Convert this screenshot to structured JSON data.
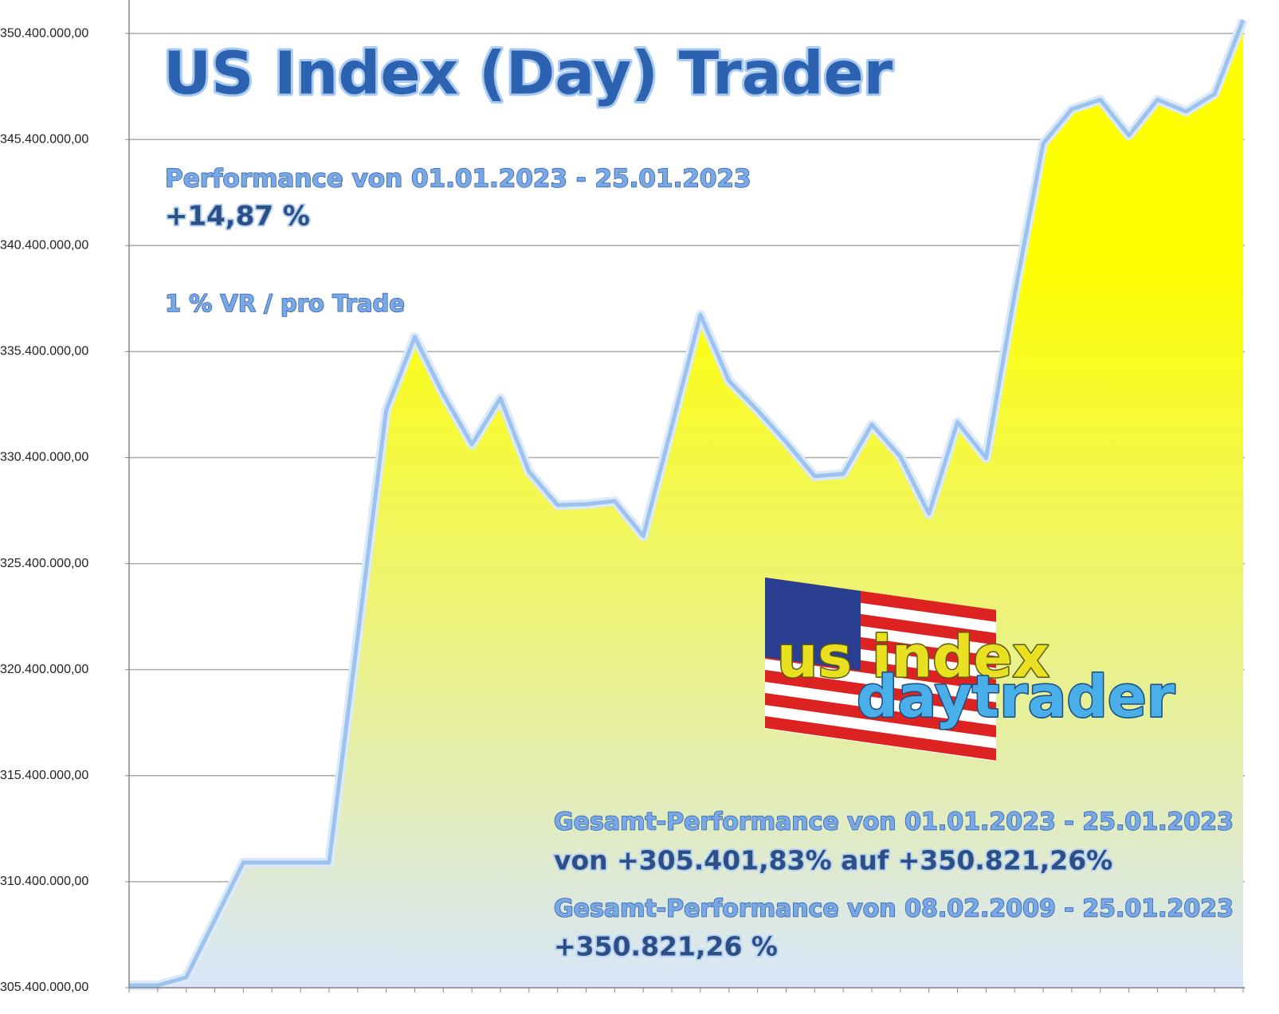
{
  "chart_data": {
    "type": "area",
    "title": "US Index (Day) Trader",
    "annotations": [
      "Performance  von  01.01.2023 - 25.01.2023",
      "+14,87 %",
      "1 % VR / pro Trade",
      "Gesamt-Performance  von  01.01.2023 - 25.01.2023",
      "von +305.401,83% auf  +350.821,26%",
      "Gesamt-Performance  von  08.02.2009 - 25.01.2023",
      "+350.821,26 %"
    ],
    "logo_text": [
      "us index",
      "daytrader"
    ],
    "categories": [
      null,
      null,
      null,
      null,
      null,
      null,
      null,
      null,
      null,
      null,
      null,
      null,
      null,
      null,
      null,
      null,
      null,
      null,
      null,
      null,
      null,
      null,
      null,
      null,
      null,
      null,
      null,
      null,
      null,
      null,
      null,
      null,
      null,
      null,
      null,
      null,
      null,
      null,
      null,
      null
    ],
    "values": [
      305510000,
      305510000,
      305890000,
      308590000,
      311300000,
      311300000,
      311300000,
      311300000,
      321930000,
      332630000,
      336090000,
      333380000,
      331020000,
      333200000,
      329740000,
      328160000,
      328200000,
      328350000,
      326700000,
      331880000,
      337140000,
      334020000,
      332630000,
      331130000,
      329520000,
      329630000,
      331960000,
      330450000,
      327750000,
      332070000,
      330380000,
      338080000,
      345220000,
      346830000,
      347280000,
      345590000,
      347280000,
      346720000,
      347550000,
      351040000
    ],
    "color": "#9cc2ee",
    "fill_top": "#ffff00",
    "fill_bottom": "#d8e6fa",
    "ylim": [
      305400000,
      351980000
    ],
    "yticks": [
      {
        "value": 305400000,
        "label": "305.400.000,00"
      },
      {
        "value": 310400000,
        "label": "310.400.000,00"
      },
      {
        "value": 315400000,
        "label": "315.400.000,00"
      },
      {
        "value": 320400000,
        "label": "320.400.000,00"
      },
      {
        "value": 325400000,
        "label": "325.400.000,00"
      },
      {
        "value": 330400000,
        "label": "330.400.000,00"
      },
      {
        "value": 335400000,
        "label": "335.400.000,00"
      },
      {
        "value": 340400000,
        "label": "340.400.000,00"
      },
      {
        "value": 345400000,
        "label": "345.400.000,00"
      },
      {
        "value": 350400000,
        "label": "350.400.000,00"
      }
    ],
    "grid": true
  }
}
